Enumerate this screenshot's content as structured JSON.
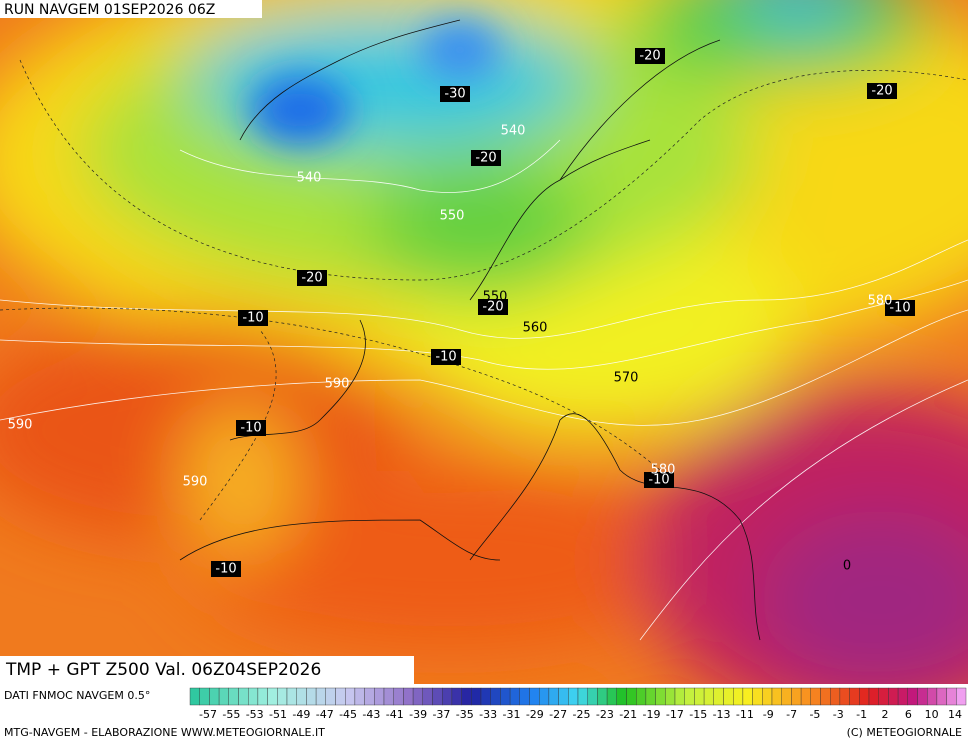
{
  "header": {
    "title": "RUN NAVGEM 01SEP2026 06Z"
  },
  "map": {
    "temperature_labels": [
      -20,
      -20,
      -30,
      -20,
      -20,
      -20,
      -10,
      -10,
      -10,
      -10,
      -10,
      -10,
      0
    ],
    "height_labels": [
      540,
      540,
      550,
      550,
      560,
      580,
      590,
      570,
      590,
      590,
      580
    ]
  },
  "caption": "TMP + GPT Z500 Val. 06Z04SEP2026",
  "legend": {
    "title": "DATI FNMOC NAVGEM 0.5°",
    "labels": [
      -57,
      -55,
      -53,
      -51,
      -49,
      -47,
      -45,
      -43,
      -41,
      -39,
      -37,
      -35,
      -33,
      -31,
      -29,
      -27,
      -25,
      -23,
      -21,
      -19,
      -17,
      -15,
      -13,
      -11,
      -9,
      -7,
      -5,
      -3,
      -1,
      2,
      6,
      10,
      14
    ]
  },
  "footer": {
    "left": "MTG-NAVGEM - ELABORAZIONE WWW.METEOGIORNALE.IT",
    "right": "(C) METEOGIORNALE"
  }
}
